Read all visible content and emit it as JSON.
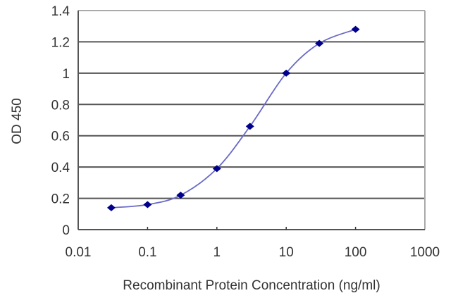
{
  "chart_data": {
    "type": "line",
    "title": "",
    "xlabel": "Recombinant Protein Concentration (ng/ml)",
    "ylabel": "OD 450",
    "xscale": "log",
    "xlim": [
      0.01,
      1000
    ],
    "ylim": [
      0,
      1.4
    ],
    "x_ticks": [
      "0.01",
      "0.1",
      "1",
      "10",
      "100",
      "1000"
    ],
    "y_ticks": [
      "0",
      "0.2",
      "0.4",
      "0.6",
      "0.8",
      "1",
      "1.2",
      "1.4"
    ],
    "grid": {
      "horizontal": true,
      "vertical": false
    },
    "legend": null,
    "series": [
      {
        "name": "OD 450",
        "color": "#00008b",
        "line_color": "#6a6ac8",
        "marker": "diamond",
        "smooth": true,
        "x": [
          0.03,
          0.1,
          0.3,
          1,
          3,
          10,
          30,
          100
        ],
        "values": [
          0.14,
          0.16,
          0.22,
          0.39,
          0.66,
          1.0,
          1.19,
          1.28
        ]
      }
    ]
  },
  "colors": {
    "grid": "#555555",
    "frame": "#888888",
    "text": "#333333"
  }
}
